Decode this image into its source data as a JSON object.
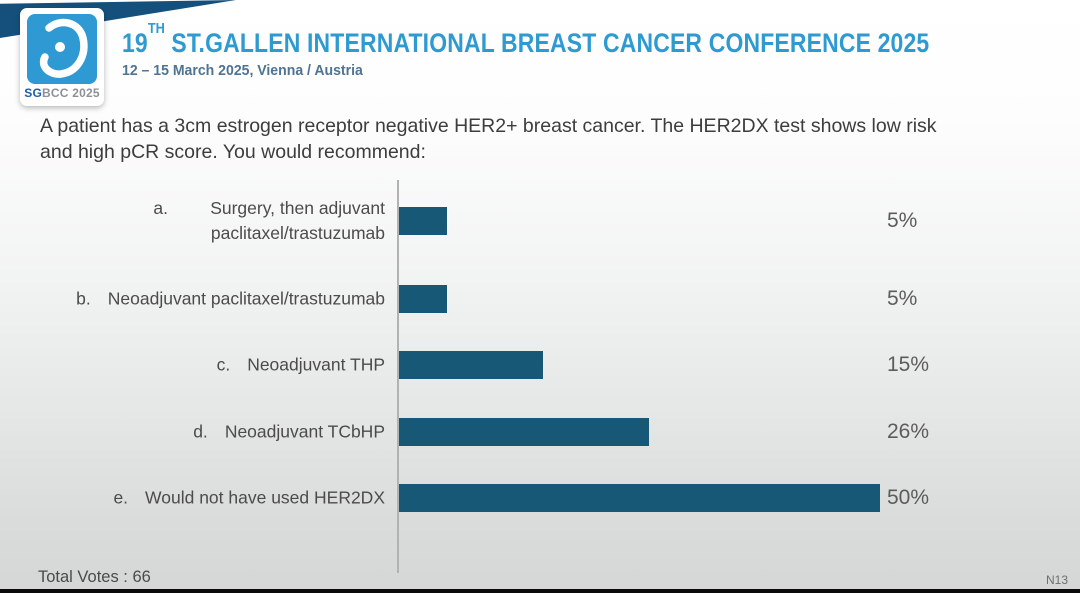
{
  "header": {
    "logo": {
      "sg": "SG",
      "bcc": "BCC",
      "year": "2025"
    },
    "title": {
      "number": "19",
      "ordinal": "TH",
      "rest": " ST.GALLEN INTERNATIONAL BREAST CANCER CONFERENCE 2025"
    },
    "subtitle": "12 – 15 March 2025, Vienna / Austria"
  },
  "question": "A patient has a 3cm estrogen receptor negative HER2+ breast cancer. The HER2DX test shows low risk and high pCR score. You would recommend:",
  "chart_data": {
    "type": "bar",
    "orientation": "horizontal",
    "letters": [
      "a.",
      "b.",
      "c.",
      "d.",
      "e."
    ],
    "categories": [
      "Surgery, then adjuvant paclitaxel/trastuzumab",
      "Neoadjuvant paclitaxel/trastuzumab",
      "Neoadjuvant THP",
      "Neoadjuvant TCbHP",
      "Would not have used HER2DX"
    ],
    "values": [
      5,
      5,
      15,
      26,
      50
    ],
    "value_labels": [
      "5%",
      "5%",
      "15%",
      "26%",
      "50%"
    ],
    "xlim": [
      0,
      50
    ],
    "grid": false,
    "legend": false,
    "bar_color": "#175877",
    "axis_color": "#b2b2b2"
  },
  "footer": {
    "total_votes": "Total Votes : 66",
    "slide_code": "N13"
  },
  "colors": {
    "accent_blue": "#2e9ad2",
    "navy_banner": "#15507d",
    "logo_blue": "#2f99d4"
  }
}
